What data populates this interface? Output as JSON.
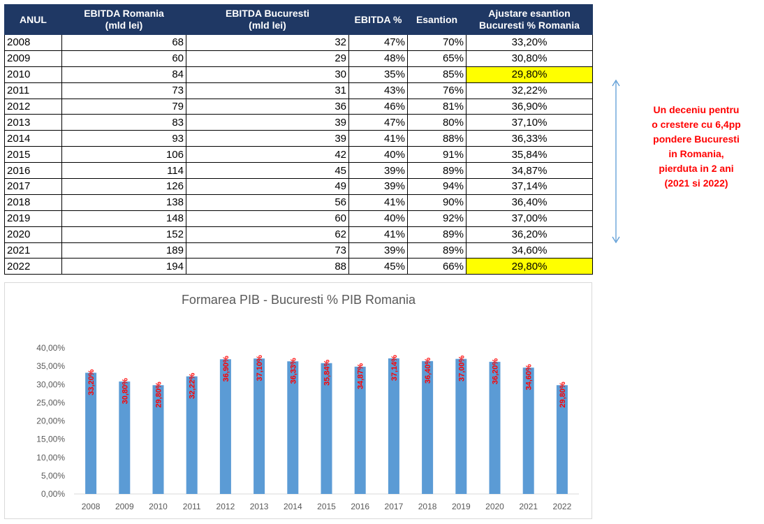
{
  "table": {
    "headers": {
      "year": "ANUL",
      "ebitda_ro_1": "EBITDA Romania",
      "ebitda_ro_2": "(mld lei)",
      "ebitda_buc_1": "EBITDA Bucuresti",
      "ebitda_buc_2": "(mld lei)",
      "ebitda_pct": "EBITDA %",
      "esantion": "Esantion",
      "adj_1": "Ajustare esantion",
      "adj_2": "Bucuresti % Romania"
    },
    "rows": [
      {
        "year": "2008",
        "ro": "68",
        "buc": "32",
        "pct": "47%",
        "es": "70%",
        "adj": "33,20%",
        "highlight": false
      },
      {
        "year": "2009",
        "ro": "60",
        "buc": "29",
        "pct": "48%",
        "es": "65%",
        "adj": "30,80%",
        "highlight": false
      },
      {
        "year": "2010",
        "ro": "84",
        "buc": "30",
        "pct": "35%",
        "es": "85%",
        "adj": "29,80%",
        "highlight": true
      },
      {
        "year": "2011",
        "ro": "73",
        "buc": "31",
        "pct": "43%",
        "es": "76%",
        "adj": "32,22%",
        "highlight": false
      },
      {
        "year": "2012",
        "ro": "79",
        "buc": "36",
        "pct": "46%",
        "es": "81%",
        "adj": "36,90%",
        "highlight": false
      },
      {
        "year": "2013",
        "ro": "83",
        "buc": "39",
        "pct": "47%",
        "es": "80%",
        "adj": "37,10%",
        "highlight": false
      },
      {
        "year": "2014",
        "ro": "93",
        "buc": "39",
        "pct": "41%",
        "es": "88%",
        "adj": "36,33%",
        "highlight": false
      },
      {
        "year": "2015",
        "ro": "106",
        "buc": "42",
        "pct": "40%",
        "es": "91%",
        "adj": "35,84%",
        "highlight": false
      },
      {
        "year": "2016",
        "ro": "114",
        "buc": "45",
        "pct": "39%",
        "es": "89%",
        "adj": "34,87%",
        "highlight": false
      },
      {
        "year": "2017",
        "ro": "126",
        "buc": "49",
        "pct": "39%",
        "es": "94%",
        "adj": "37,14%",
        "highlight": false
      },
      {
        "year": "2018",
        "ro": "138",
        "buc": "56",
        "pct": "41%",
        "es": "90%",
        "adj": "36,40%",
        "highlight": false
      },
      {
        "year": "2019",
        "ro": "148",
        "buc": "60",
        "pct": "40%",
        "es": "92%",
        "adj": "37,00%",
        "highlight": false
      },
      {
        "year": "2020",
        "ro": "152",
        "buc": "62",
        "pct": "41%",
        "es": "89%",
        "adj": "36,20%",
        "highlight": false
      },
      {
        "year": "2021",
        "ro": "189",
        "buc": "73",
        "pct": "39%",
        "es": "89%",
        "adj": "34,60%",
        "highlight": false
      },
      {
        "year": "2022",
        "ro": "194",
        "buc": "88",
        "pct": "45%",
        "es": "66%",
        "adj": "29,80%",
        "highlight": true
      }
    ],
    "header_color": "#1f3864",
    "highlight_color": "#ffff00"
  },
  "annotation": {
    "lines": [
      "Un deceniu pentru",
      "o crestere cu 6,4pp",
      "pondere Bucuresti",
      "in Romania,",
      "pierduta in 2 ani",
      "(2021 si 2022)"
    ],
    "color": "#ff0000",
    "arrow_color": "#5b9bd5"
  },
  "chart_data": {
    "type": "bar",
    "title": "Formarea PIB - Bucuresti % PIB Romania",
    "categories": [
      "2008",
      "2009",
      "2010",
      "2011",
      "2012",
      "2013",
      "2014",
      "2015",
      "2016",
      "2017",
      "2018",
      "2019",
      "2020",
      "2021",
      "2022"
    ],
    "values": [
      33.2,
      30.8,
      29.8,
      32.22,
      36.9,
      37.1,
      36.33,
      35.84,
      34.87,
      37.14,
      36.4,
      37.0,
      36.2,
      34.6,
      29.8
    ],
    "data_labels": [
      "33,20%",
      "30,80%",
      "29,80%",
      "32,22%",
      "36,90%",
      "37,10%",
      "36,33%",
      "35,84%",
      "34,87%",
      "37,14%",
      "36,40%",
      "37,00%",
      "36,20%",
      "34,60%",
      "29,80%"
    ],
    "ylim": [
      0,
      40
    ],
    "yticks": [
      0,
      5,
      10,
      15,
      20,
      25,
      30,
      35,
      40
    ],
    "ytick_labels": [
      "0,00%",
      "5,00%",
      "10,00%",
      "15,00%",
      "20,00%",
      "25,00%",
      "30,00%",
      "35,00%",
      "40,00%"
    ],
    "xlabel": "",
    "ylabel": "",
    "grid": false,
    "legend": "none",
    "bar_color": "#5b9bd5",
    "label_color": "#ff0000"
  }
}
